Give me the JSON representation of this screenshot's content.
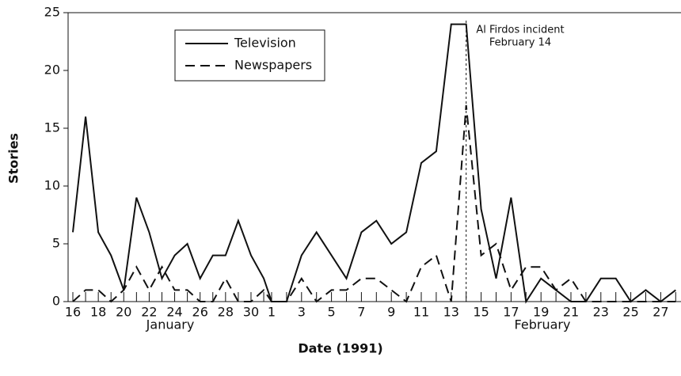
{
  "chart_data": {
    "type": "line",
    "x_label": "Date (1991)",
    "y_label": "Stories",
    "categories": [
      "16",
      null,
      "18",
      null,
      "20",
      null,
      "22",
      null,
      "24",
      null,
      "26",
      null,
      "28",
      null,
      "30",
      null,
      "1",
      null,
      "3",
      null,
      "5",
      null,
      "7",
      null,
      "9",
      null,
      "11",
      null,
      "13",
      null,
      "15",
      null,
      "17",
      null,
      "19",
      null,
      "21",
      null,
      "23",
      null,
      "25",
      null,
      "27",
      null
    ],
    "month_labels": [
      "January",
      "February"
    ],
    "series": [
      {
        "name": "Television",
        "color": "#111111",
        "dash": "solid",
        "values": [
          6,
          16,
          6,
          4,
          1,
          9,
          6,
          2,
          4,
          5,
          2,
          4,
          4,
          7,
          4,
          2,
          0,
          0,
          4,
          6,
          4,
          2,
          6,
          7,
          5,
          6,
          12,
          13,
          24,
          24,
          8,
          2,
          9,
          0,
          2,
          1,
          0,
          0,
          2,
          2,
          0,
          1,
          0,
          1
        ]
      },
      {
        "name": "Newspapers",
        "color": "#111111",
        "dash": "dashed",
        "values": [
          0,
          1,
          1,
          0,
          1,
          3,
          1,
          3,
          1,
          1,
          0,
          0,
          2,
          0,
          0,
          1,
          0,
          0,
          2,
          0,
          1,
          1,
          2,
          2,
          1,
          0,
          3,
          4,
          0,
          17,
          4,
          5,
          1,
          3,
          3,
          1,
          2,
          0,
          0,
          0,
          0,
          0,
          0,
          0
        ]
      }
    ],
    "annotation": {
      "lines": [
        "Al Firdos incident",
        "February 14"
      ],
      "index": 29
    },
    "ylim": [
      0,
      25
    ],
    "yticks": [
      0,
      5,
      10,
      15,
      20,
      25
    ],
    "grid": false
  }
}
